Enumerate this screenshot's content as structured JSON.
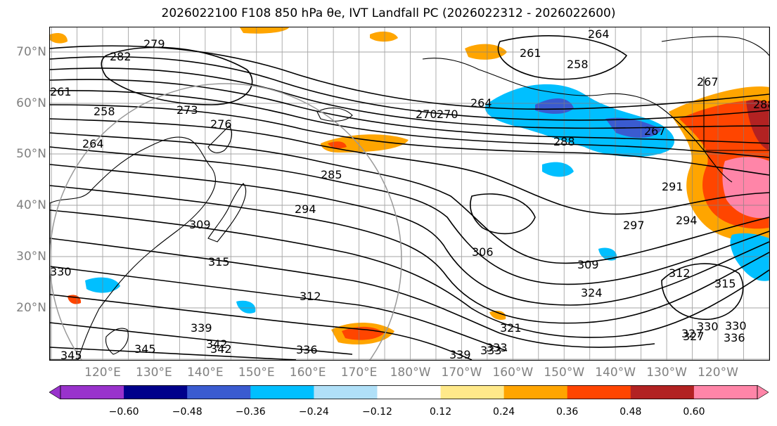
{
  "title": "2026022100 F108 850 hPa θe, IVT Landfall PC (2026022312 - 2026022600)",
  "map": {
    "lat_labels": [
      "70°N",
      "60°N",
      "50°N",
      "40°N",
      "30°N",
      "20°N"
    ],
    "lon_labels": [
      "120°E",
      "130°E",
      "140°E",
      "150°E",
      "160°E",
      "170°E",
      "180°W",
      "170°W",
      "160°W",
      "150°W",
      "140°W",
      "130°W",
      "120°W"
    ],
    "contour_labels": [
      "264",
      "261",
      "258",
      "267",
      "270",
      "273",
      "276",
      "279",
      "282",
      "285",
      "288",
      "291",
      "294",
      "297",
      "306",
      "309",
      "312",
      "315",
      "321",
      "324",
      "327",
      "330",
      "333",
      "336",
      "339",
      "342",
      "345"
    ],
    "contour_color": "#000000",
    "land_outline_color": "#000000",
    "grid_color": "#808080"
  },
  "colorbar": {
    "ticks": [
      "−0.60",
      "−0.48",
      "−0.36",
      "−0.24",
      "−0.12",
      "0.12",
      "0.24",
      "0.36",
      "0.48",
      "0.60"
    ],
    "colors": [
      "#9932cc",
      "#00008b",
      "#3a5bd0",
      "#00bfff",
      "#b0e0f8",
      "#ffffff",
      "#ffe98a",
      "#ffa500",
      "#ff4500",
      "#b22222",
      "#ff85a8"
    ]
  }
}
